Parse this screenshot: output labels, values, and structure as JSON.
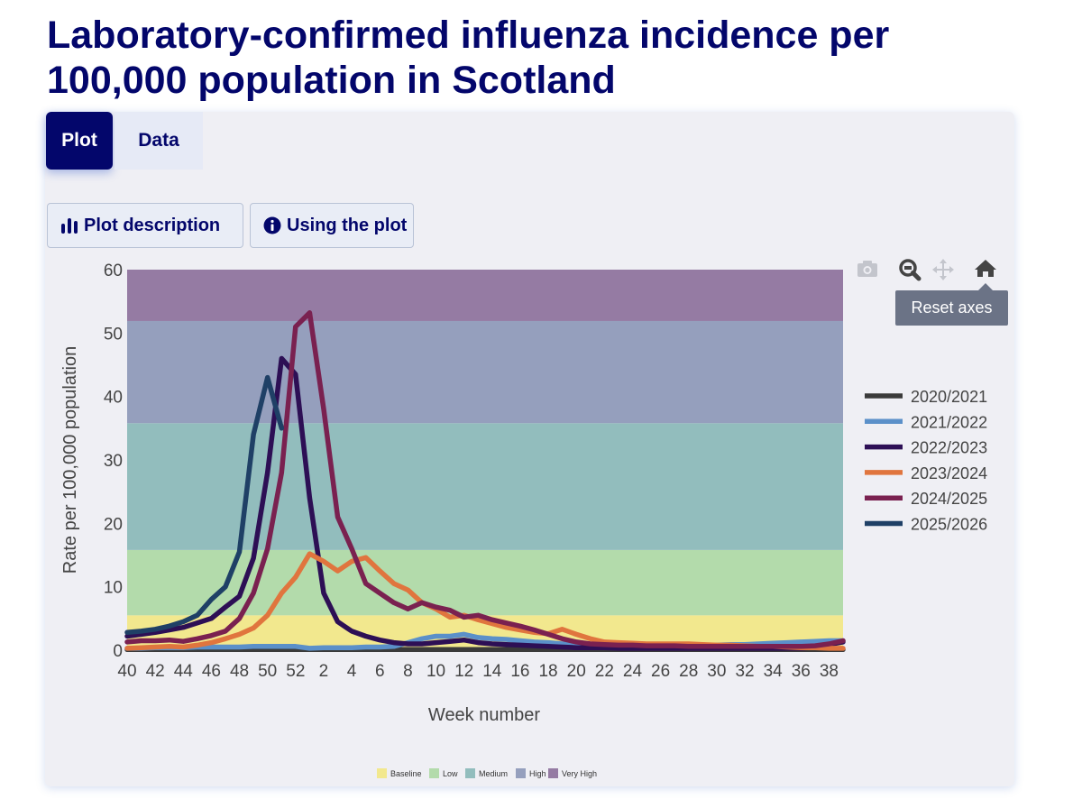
{
  "page": {
    "title": "Laboratory-confirmed influenza incidence per 100,000 population in Scotland"
  },
  "tabs": [
    {
      "label": "Plot",
      "active": true
    },
    {
      "label": "Data",
      "active": false
    }
  ],
  "buttons": {
    "plot_description": "Plot description",
    "using_plot": "Using the plot"
  },
  "modebar": {
    "icons": [
      "camera-icon",
      "zoom-icon",
      "pan-icon",
      "home-icon"
    ],
    "tooltip": "Reset axes"
  },
  "chart_data": {
    "type": "line",
    "xlabel": "Week number",
    "ylabel": "Rate per 100,000 population",
    "ylim": [
      0,
      60
    ],
    "yticks": [
      0,
      10,
      20,
      30,
      40,
      50,
      60
    ],
    "weeks": [
      40,
      41,
      42,
      43,
      44,
      45,
      46,
      47,
      48,
      49,
      50,
      51,
      52,
      1,
      2,
      3,
      4,
      5,
      6,
      7,
      8,
      9,
      10,
      11,
      12,
      13,
      14,
      15,
      16,
      17,
      18,
      19,
      20,
      21,
      22,
      23,
      24,
      25,
      26,
      27,
      28,
      29,
      30,
      31,
      32,
      33,
      34,
      35,
      36,
      37,
      38,
      39
    ],
    "xtick_labels": [
      "40",
      "42",
      "44",
      "46",
      "48",
      "50",
      "52",
      "2",
      "4",
      "6",
      "8",
      "10",
      "12",
      "14",
      "16",
      "18",
      "20",
      "22",
      "24",
      "26",
      "28",
      "30",
      "32",
      "34",
      "36",
      "38"
    ],
    "bands": [
      {
        "label": "Baseline",
        "from": 0,
        "to": 5.5,
        "color": "#f2e88e"
      },
      {
        "label": "Low",
        "from": 5.5,
        "to": 15.8,
        "color": "#b3dbab"
      },
      {
        "label": "Medium",
        "from": 15.8,
        "to": 35.8,
        "color": "#92bdbd"
      },
      {
        "label": "High",
        "from": 35.8,
        "to": 51.9,
        "color": "#959fbd"
      },
      {
        "label": "Very High",
        "from": 51.9,
        "to": 60,
        "color": "#957ba3"
      }
    ],
    "series": [
      {
        "name": "2020/2021",
        "color": "#3a3a3a",
        "values": [
          0.1,
          0.1,
          0.1,
          0.1,
          0.1,
          0.1,
          0.1,
          0.1,
          0.1,
          0.1,
          0.1,
          0.1,
          0.1,
          0.1,
          0.1,
          0.1,
          0.1,
          0.1,
          0.1,
          0.1,
          0.1,
          0.1,
          0.1,
          0.1,
          0.1,
          0.1,
          0.1,
          0.1,
          0.1,
          0.1,
          0.1,
          0.1,
          0.1,
          0.1,
          0.1,
          0.1,
          0.1,
          0.1,
          0.1,
          0.1,
          0.1,
          0.1,
          0.1,
          0.1,
          0.1,
          0.1,
          0.1,
          0.1,
          0.1,
          0.1,
          0.1,
          0.1
        ]
      },
      {
        "name": "2021/2022",
        "color": "#5b90c9",
        "values": [
          0.3,
          0.3,
          0.4,
          0.4,
          0.4,
          0.5,
          0.5,
          0.5,
          0.5,
          0.6,
          0.6,
          0.6,
          0.6,
          0.3,
          0.4,
          0.4,
          0.4,
          0.5,
          0.5,
          0.6,
          1.2,
          1.8,
          2.2,
          2.2,
          2.5,
          2.0,
          1.8,
          1.7,
          1.5,
          1.3,
          1.2,
          1.0,
          0.9,
          0.8,
          0.8,
          0.7,
          0.7,
          0.7,
          0.8,
          0.8,
          0.8,
          0.8,
          0.8,
          0.9,
          0.9,
          1.0,
          1.1,
          1.2,
          1.3,
          1.4,
          1.5,
          1.5
        ]
      },
      {
        "name": "2022/2023",
        "color": "#2d0f55",
        "values": [
          2.2,
          2.5,
          2.8,
          3.2,
          3.6,
          4.3,
          5.0,
          6.8,
          8.5,
          14.5,
          28.0,
          46.0,
          43.5,
          24.0,
          9.0,
          4.5,
          3.0,
          2.2,
          1.6,
          1.2,
          1.0,
          1.0,
          1.2,
          1.4,
          1.6,
          1.2,
          1.0,
          0.9,
          0.8,
          0.7,
          0.6,
          0.5,
          0.4,
          0.4,
          0.4,
          0.3,
          0.3,
          0.3,
          0.3,
          0.3,
          0.3,
          0.3,
          0.3,
          0.3,
          0.3,
          0.3,
          0.3,
          0.3,
          0.3,
          0.5,
          0.9,
          1.3
        ]
      },
      {
        "name": "2023/2024",
        "color": "#e0753e",
        "values": [
          0.3,
          0.4,
          0.5,
          0.6,
          0.5,
          0.8,
          1.2,
          1.8,
          2.5,
          3.5,
          5.5,
          9.0,
          11.5,
          15.2,
          14.0,
          12.5,
          14.0,
          14.6,
          12.5,
          10.5,
          9.5,
          7.5,
          6.5,
          5.2,
          5.5,
          4.8,
          4.2,
          3.6,
          3.2,
          2.8,
          2.6,
          3.3,
          2.5,
          1.8,
          1.3,
          1.2,
          1.1,
          1.0,
          1.0,
          1.0,
          1.0,
          0.9,
          0.8,
          0.8,
          0.7,
          0.6,
          0.6,
          0.5,
          0.4,
          0.4,
          0.3,
          0.3
        ]
      },
      {
        "name": "2024/2025",
        "color": "#7a2150",
        "values": [
          1.3,
          1.5,
          1.5,
          1.6,
          1.4,
          1.8,
          2.3,
          3.0,
          5.0,
          9.0,
          16.0,
          28.0,
          51.0,
          53.2,
          38.0,
          21.0,
          16.0,
          10.5,
          9.0,
          7.5,
          6.5,
          7.5,
          6.8,
          6.3,
          5.2,
          5.5,
          4.8,
          4.3,
          3.8,
          3.2,
          2.5,
          1.8,
          1.3,
          1.0,
          0.9,
          0.8,
          0.8,
          0.7,
          0.7,
          0.7,
          0.6,
          0.6,
          0.6,
          0.6,
          0.6,
          0.6,
          0.6,
          0.6,
          0.6,
          0.7,
          1.0,
          1.5
        ]
      },
      {
        "name": "2025/2026",
        "color": "#1f4066",
        "values": [
          2.8,
          3.0,
          3.3,
          3.8,
          4.5,
          5.5,
          8.0,
          10.0,
          15.5,
          34.0,
          43.0,
          35.0
        ]
      }
    ]
  }
}
